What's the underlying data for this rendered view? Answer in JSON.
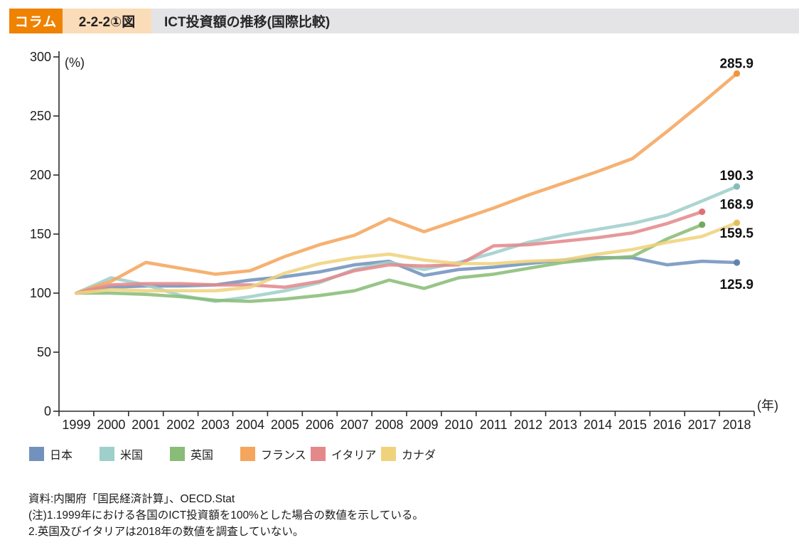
{
  "header": {
    "badge": "コラム",
    "figure_number": "2-2-2①図",
    "title": "ICT投資額の推移(国際比較)"
  },
  "chart_data": {
    "type": "line",
    "title": "ICT投資額の推移(国際比較)",
    "y_unit_label": "(%)",
    "x_unit_label": "(年)",
    "ylim": [
      0,
      300
    ],
    "ytick_step": 50,
    "grid": false,
    "legend_position": "bottom",
    "x": [
      1999,
      2000,
      2001,
      2002,
      2003,
      2004,
      2005,
      2006,
      2007,
      2008,
      2009,
      2010,
      2011,
      2012,
      2013,
      2014,
      2015,
      2016,
      2017,
      2018
    ],
    "series": [
      {
        "name": "日本",
        "color": "#7292bd",
        "dot_color": "#5d80ab",
        "end_label": "125.9",
        "end_label_dy": 37,
        "values": [
          100,
          105,
          106,
          106,
          107,
          111,
          114,
          118,
          124,
          127,
          115,
          120,
          122,
          125,
          128,
          130,
          130,
          124,
          127,
          125.9
        ]
      },
      {
        "name": "米国",
        "color": "#9ecfcb",
        "dot_color": "#7fbcb7",
        "end_label": "190.3",
        "end_label_dy": -9,
        "values": [
          100,
          113,
          107,
          98,
          93,
          97,
          102,
          109,
          120,
          126,
          120,
          126,
          134,
          143,
          149,
          154,
          159,
          166,
          178,
          190.3
        ]
      },
      {
        "name": "英国",
        "color": "#89bc76",
        "dot_color": "#6da75c",
        "end_label": null,
        "end_label_dy": 0,
        "values": [
          100,
          100,
          99,
          97,
          94,
          93,
          95,
          98,
          102,
          111,
          104,
          113,
          116,
          121,
          126,
          129,
          131,
          146,
          158
        ]
      },
      {
        "name": "フランス",
        "color": "#f5a55c",
        "dot_color": "#ef9138",
        "end_label": "285.9",
        "end_label_dy": -8,
        "values": [
          100,
          110,
          126,
          121,
          116,
          119,
          131,
          141,
          149,
          163,
          152,
          162,
          172,
          183,
          193,
          203,
          214,
          237,
          261,
          285.9
        ]
      },
      {
        "name": "イタリア",
        "color": "#e4898b",
        "dot_color": "#d96f72",
        "end_label": "168.9",
        "end_label_dy": -4,
        "values": [
          100,
          107,
          108,
          108,
          107,
          107,
          105,
          110,
          119,
          124,
          123,
          124,
          140,
          141,
          144,
          147,
          151,
          159,
          168.9
        ]
      },
      {
        "name": "カナダ",
        "color": "#f0d27d",
        "dot_color": "#e5bd55",
        "end_label": "159.5",
        "end_label_dy": 21,
        "values": [
          100,
          103,
          102,
          102,
          102,
          105,
          117,
          125,
          130,
          133,
          128,
          125,
          125,
          127,
          128,
          133,
          137,
          143,
          148,
          159.5
        ]
      }
    ]
  },
  "footer": {
    "source": "資料:内閣府「国民経済計算」、OECD.Stat",
    "note1": "(注)1.1999年における各国のICT投資額を100%とした場合の数値を示している。",
    "note2": "2.英国及びイタリアは2018年の数値を調査していない。"
  }
}
